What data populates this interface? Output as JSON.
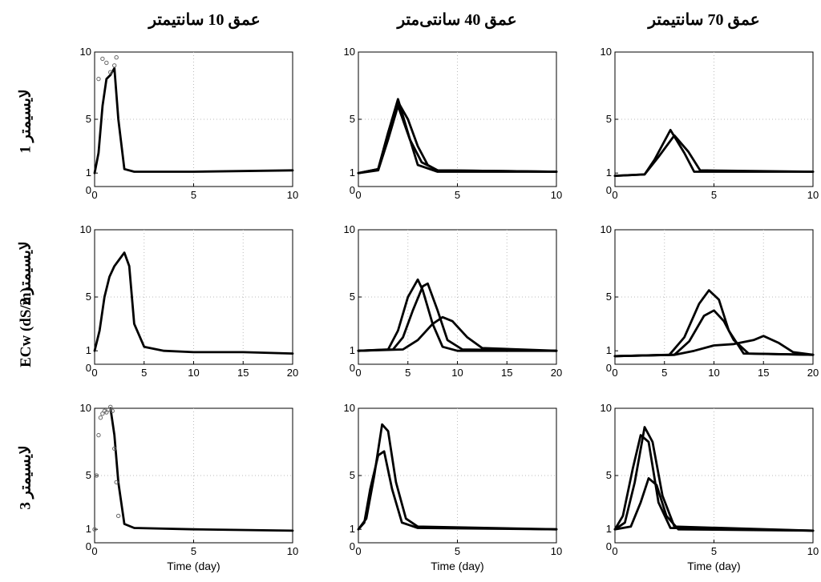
{
  "column_titles": [
    "عمق 10 سانتیمتر",
    "عمق 40 سانتی‌متر",
    "عمق 70 سانتیمتر"
  ],
  "row_titles": [
    "لایسیمتر 1",
    "لایسیمتر 2",
    "لایسیمتر 3"
  ],
  "y_axis_label": "ECw (dS/m)",
  "x_axis_label": "Time (day)",
  "chart_data": [
    {
      "type": "line",
      "row": 1,
      "col": 1,
      "xlim": [
        0,
        10
      ],
      "ylim": [
        0,
        10
      ],
      "yticks": [
        0,
        1,
        5,
        10
      ],
      "xticks": [
        0,
        5,
        10
      ],
      "series": [
        {
          "x": [
            0,
            0.2,
            0.4,
            0.6,
            0.8,
            1.0,
            1.2,
            1.5,
            2,
            5,
            10
          ],
          "values": [
            1,
            2.5,
            6,
            8,
            8.3,
            8.8,
            5,
            1.3,
            1.1,
            1.1,
            1.2
          ]
        },
        {
          "style": "markers",
          "x": [
            0.2,
            0.4,
            0.6,
            0.8,
            1.0,
            1.1
          ],
          "values": [
            8,
            9.5,
            9.2,
            8.5,
            9.0,
            9.6
          ]
        }
      ]
    },
    {
      "type": "line",
      "row": 1,
      "col": 2,
      "xlim": [
        0,
        10
      ],
      "ylim": [
        0,
        10
      ],
      "yticks": [
        0,
        1,
        5,
        10
      ],
      "xticks": [
        0,
        5,
        10
      ],
      "series": [
        {
          "x": [
            0,
            1,
            1.5,
            2,
            2.5,
            3,
            4,
            10
          ],
          "values": [
            1,
            1.3,
            4,
            6.5,
            4,
            1.6,
            1.1,
            1.1
          ]
        },
        {
          "x": [
            0,
            1,
            1.5,
            2,
            2.5,
            3,
            3.5,
            4,
            10
          ],
          "values": [
            1,
            1.3,
            4,
            6.3,
            5,
            3,
            1.6,
            1.2,
            1.1
          ]
        },
        {
          "x": [
            0,
            1,
            1.5,
            2,
            2.6,
            3.2,
            4,
            10
          ],
          "values": [
            1,
            1.2,
            3.5,
            6.0,
            3.5,
            1.8,
            1.2,
            1.1
          ]
        }
      ]
    },
    {
      "type": "line",
      "row": 1,
      "col": 3,
      "xlim": [
        0,
        10
      ],
      "ylim": [
        0,
        10
      ],
      "yticks": [
        0,
        1,
        5,
        10
      ],
      "xticks": [
        0,
        5,
        10
      ],
      "series": [
        {
          "x": [
            0,
            1.5,
            2,
            2.8,
            3.5,
            4,
            10
          ],
          "values": [
            0.8,
            0.9,
            2,
            4.2,
            2.5,
            1.1,
            1.1
          ]
        },
        {
          "x": [
            0,
            1.5,
            2.2,
            3,
            3.7,
            4.3,
            10
          ],
          "values": [
            0.8,
            0.9,
            2.2,
            3.8,
            2.6,
            1.2,
            1.1
          ]
        }
      ]
    },
    {
      "type": "line",
      "row": 2,
      "col": 1,
      "xlim": [
        0,
        20
      ],
      "ylim": [
        0,
        10
      ],
      "yticks": [
        0,
        1,
        5,
        10
      ],
      "xticks": [
        0,
        5,
        10,
        15,
        20
      ],
      "series": [
        {
          "x": [
            0,
            0.5,
            1,
            1.5,
            2,
            2.5,
            3,
            3.5,
            4,
            5,
            7,
            10,
            15,
            20
          ],
          "values": [
            1,
            2.5,
            5,
            6.5,
            7.3,
            7.8,
            8.3,
            7.3,
            3,
            1.3,
            1.0,
            0.9,
            0.9,
            0.8
          ]
        }
      ]
    },
    {
      "type": "line",
      "row": 2,
      "col": 2,
      "xlim": [
        0,
        20
      ],
      "ylim": [
        0,
        10
      ],
      "yticks": [
        0,
        1,
        5,
        10
      ],
      "xticks": [
        0,
        5,
        10,
        15,
        20
      ],
      "series": [
        {
          "x": [
            0,
            3,
            4,
            5,
            6,
            6.5,
            7.5,
            8.5,
            10,
            20
          ],
          "values": [
            1,
            1.1,
            2.5,
            5,
            6.3,
            5.5,
            3,
            1.3,
            1.0,
            1.0
          ]
        },
        {
          "x": [
            0,
            3.5,
            4.5,
            5.5,
            6.5,
            7,
            8,
            9,
            10.5,
            20
          ],
          "values": [
            1,
            1.1,
            2,
            4,
            5.8,
            6,
            4,
            1.8,
            1.1,
            1.0
          ]
        },
        {
          "x": [
            0,
            4.5,
            6,
            7.5,
            8.5,
            9.5,
            11,
            12.5,
            20
          ],
          "values": [
            1,
            1.1,
            1.8,
            3,
            3.5,
            3.2,
            2,
            1.2,
            1.0
          ]
        }
      ]
    },
    {
      "type": "line",
      "row": 2,
      "col": 3,
      "xlim": [
        0,
        20
      ],
      "ylim": [
        0,
        10
      ],
      "yticks": [
        0,
        1,
        5,
        10
      ],
      "xticks": [
        0,
        5,
        10,
        15,
        20
      ],
      "series": [
        {
          "x": [
            0,
            5.5,
            7,
            8.5,
            9.5,
            10.5,
            11.5,
            13,
            20
          ],
          "values": [
            0.6,
            0.7,
            2,
            4.5,
            5.5,
            4.8,
            2.5,
            0.8,
            0.7
          ]
        },
        {
          "x": [
            0,
            6,
            7.5,
            9,
            10,
            11,
            12,
            13.5,
            20
          ],
          "values": [
            0.6,
            0.7,
            1.7,
            3.6,
            4,
            3.2,
            1.8,
            0.8,
            0.7
          ]
        },
        {
          "x": [
            0,
            6,
            8,
            10,
            12,
            14,
            15,
            16.5,
            18,
            20
          ],
          "values": [
            0.6,
            0.7,
            1.0,
            1.4,
            1.5,
            1.8,
            2.1,
            1.6,
            0.9,
            0.7
          ]
        }
      ]
    },
    {
      "type": "line",
      "row": 3,
      "col": 1,
      "xlim": [
        0,
        10
      ],
      "ylim": [
        0,
        10
      ],
      "yticks": [
        0,
        1,
        5,
        10
      ],
      "xticks": [
        0,
        5,
        10
      ],
      "series": [
        {
          "x": [
            0.8,
            1,
            1.2,
            1.5,
            2,
            5,
            10
          ],
          "values": [
            10,
            8,
            4.5,
            1.4,
            1.1,
            1.0,
            0.9
          ]
        },
        {
          "style": "markers",
          "x": [
            0,
            0.1,
            0.2,
            0.3,
            0.4,
            0.5,
            0.6,
            0.7,
            0.8,
            0.9,
            1.0,
            1.1,
            1.2
          ],
          "values": [
            1,
            5,
            8,
            9.3,
            9.6,
            9.8,
            9.7,
            9.9,
            10.1,
            9.8,
            7,
            4.5,
            2
          ]
        }
      ]
    },
    {
      "type": "line",
      "row": 3,
      "col": 2,
      "xlim": [
        0,
        10
      ],
      "ylim": [
        0,
        10
      ],
      "yticks": [
        0,
        1,
        5,
        10
      ],
      "xticks": [
        0,
        5,
        10
      ],
      "series": [
        {
          "x": [
            0,
            0.3,
            0.6,
            1,
            1.3,
            1.7,
            2.2,
            3,
            10
          ],
          "values": [
            1,
            1.5,
            4,
            6.5,
            6.8,
            4,
            1.5,
            1.1,
            1.0
          ]
        },
        {
          "x": [
            0,
            0.4,
            0.8,
            1.2,
            1.5,
            1.9,
            2.4,
            3,
            10
          ],
          "values": [
            1,
            1.8,
            5,
            8.8,
            8.3,
            4.5,
            1.8,
            1.2,
            1.0
          ]
        }
      ]
    },
    {
      "type": "line",
      "row": 3,
      "col": 3,
      "xlim": [
        0,
        10
      ],
      "ylim": [
        0,
        10
      ],
      "yticks": [
        0,
        1,
        5,
        10
      ],
      "xticks": [
        0,
        5,
        10
      ],
      "series": [
        {
          "x": [
            0,
            0.4,
            0.9,
            1.3,
            1.7,
            2.2,
            2.8,
            10
          ],
          "values": [
            1,
            2,
            5.5,
            8,
            7.5,
            3,
            1.1,
            0.9
          ]
        },
        {
          "x": [
            0,
            0.5,
            1,
            1.5,
            1.9,
            2.4,
            3,
            10
          ],
          "values": [
            1,
            1.5,
            4.5,
            8.6,
            7.5,
            3.5,
            1.2,
            0.9
          ]
        },
        {
          "x": [
            0,
            0.8,
            1.3,
            1.7,
            2.1,
            2.6,
            3.2,
            10
          ],
          "values": [
            1,
            1.2,
            3,
            4.8,
            4.3,
            2,
            1.0,
            0.9
          ]
        }
      ]
    }
  ]
}
